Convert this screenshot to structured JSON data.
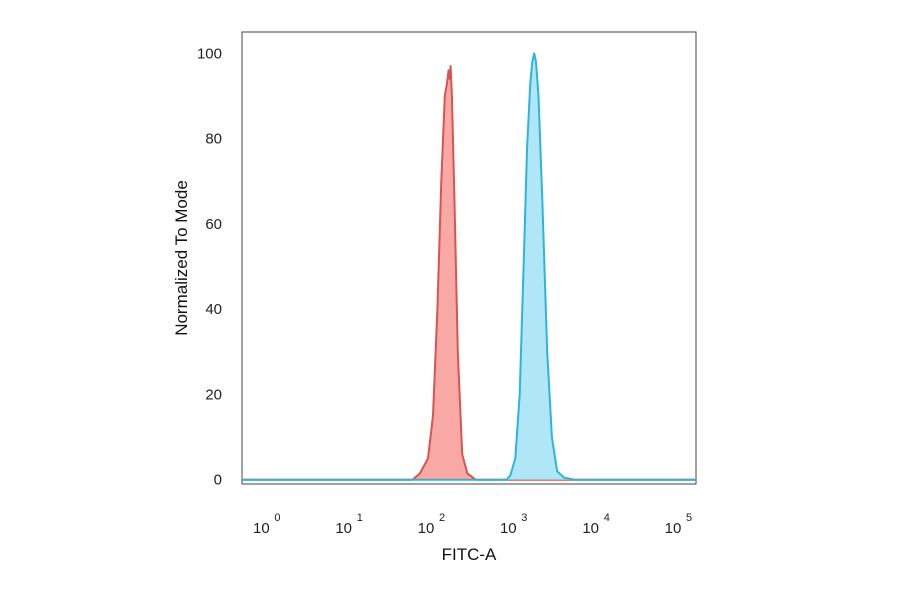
{
  "chart_data": {
    "type": "area",
    "xlabel": "FITC-A",
    "ylabel": "Normalized To Mode",
    "x_scale": "log",
    "xlim": [
      0.55,
      180000
    ],
    "ylim": [
      -1,
      105
    ],
    "x_ticks": [
      {
        "base": "10",
        "exp": "0",
        "value": 1
      },
      {
        "base": "10",
        "exp": "1",
        "value": 10
      },
      {
        "base": "10",
        "exp": "2",
        "value": 100
      },
      {
        "base": "10",
        "exp": "3",
        "value": 1000
      },
      {
        "base": "10",
        "exp": "4",
        "value": 10000
      },
      {
        "base": "10",
        "exp": "5",
        "value": 100000
      }
    ],
    "y_ticks": [
      0,
      20,
      40,
      60,
      80,
      100
    ],
    "grid": false,
    "series": [
      {
        "color": "#d9534f",
        "fill": "#f7a09b",
        "points": [
          [
            0.55,
            0
          ],
          [
            50,
            0
          ],
          [
            65,
            0
          ],
          [
            80,
            1.5
          ],
          [
            100,
            5
          ],
          [
            115,
            15
          ],
          [
            130,
            40
          ],
          [
            145,
            70
          ],
          [
            160,
            90
          ],
          [
            170,
            93
          ],
          [
            178,
            96
          ],
          [
            183,
            94
          ],
          [
            188,
            97
          ],
          [
            195,
            90
          ],
          [
            210,
            65
          ],
          [
            230,
            30
          ],
          [
            260,
            6
          ],
          [
            300,
            1.5
          ],
          [
            380,
            0
          ],
          [
            600,
            0
          ],
          [
            2000,
            0
          ],
          [
            6000,
            0
          ],
          [
            180000,
            0
          ]
        ]
      },
      {
        "color": "#2cb5d8",
        "fill": "#a8e3f6",
        "points": [
          [
            0.55,
            0
          ],
          [
            600,
            0
          ],
          [
            900,
            0
          ],
          [
            1000,
            1
          ],
          [
            1150,
            5
          ],
          [
            1300,
            20
          ],
          [
            1450,
            50
          ],
          [
            1600,
            78
          ],
          [
            1750,
            93
          ],
          [
            1850,
            98
          ],
          [
            1950,
            100
          ],
          [
            2050,
            98
          ],
          [
            2200,
            90
          ],
          [
            2450,
            65
          ],
          [
            2800,
            30
          ],
          [
            3200,
            10
          ],
          [
            3700,
            2
          ],
          [
            4500,
            0.5
          ],
          [
            6000,
            0
          ],
          [
            180000,
            0
          ]
        ]
      }
    ]
  }
}
